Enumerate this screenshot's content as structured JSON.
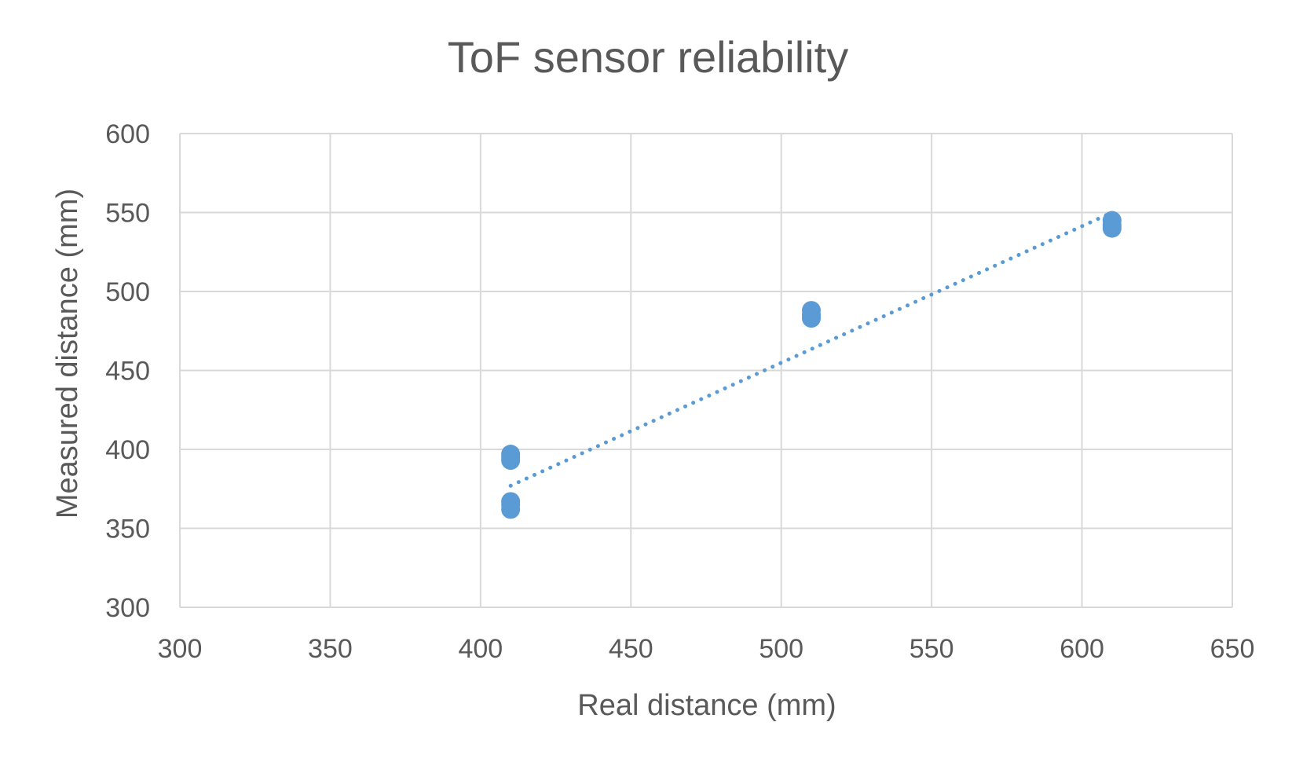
{
  "chart_data": {
    "type": "scatter",
    "title": "ToF sensor reliability",
    "xlabel": "Real distance (mm)",
    "ylabel": "Measured distance (mm)",
    "xlim": [
      300,
      650
    ],
    "ylim": [
      300,
      600
    ],
    "x_ticks": [
      "300",
      "350",
      "400",
      "450",
      "500",
      "550",
      "600",
      "650"
    ],
    "y_ticks": [
      "300",
      "350",
      "400",
      "450",
      "500",
      "550",
      "600"
    ],
    "grid": true,
    "legend": "none",
    "colors": {
      "points": "#5b9bd5",
      "trendline": "#5b9bd5",
      "grid": "#d9d9d9",
      "text": "#595959"
    },
    "series": [
      {
        "points": [
          {
            "x": 410,
            "y": 362
          },
          {
            "x": 410,
            "y": 365
          },
          {
            "x": 410,
            "y": 367
          },
          {
            "x": 410,
            "y": 393
          },
          {
            "x": 410,
            "y": 395
          },
          {
            "x": 410,
            "y": 397
          },
          {
            "x": 510,
            "y": 483
          },
          {
            "x": 510,
            "y": 485
          },
          {
            "x": 510,
            "y": 488
          },
          {
            "x": 610,
            "y": 540
          },
          {
            "x": 610,
            "y": 542
          },
          {
            "x": 610,
            "y": 545
          }
        ]
      }
    ],
    "trendline": {
      "style": "dotted",
      "from": {
        "x": 410,
        "y": 377
      },
      "to": {
        "x": 610,
        "y": 550
      }
    }
  }
}
